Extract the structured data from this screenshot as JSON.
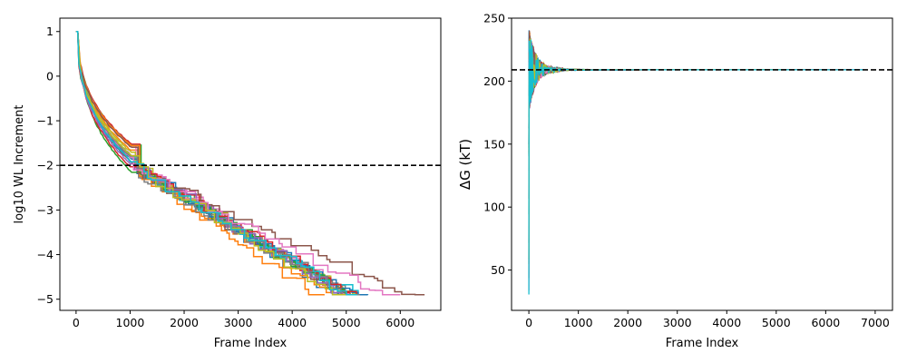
{
  "chart_data": [
    {
      "type": "line",
      "xlabel": "Frame Index",
      "ylabel": "log10 WL Increment",
      "xlim": [
        -300,
        6750
      ],
      "ylim": [
        -5.25,
        1.3
      ],
      "xticks": [
        0,
        1000,
        2000,
        3000,
        4000,
        5000,
        6000
      ],
      "yticks": [
        1,
        0,
        -1,
        -2,
        -3,
        -4,
        -5
      ],
      "ytick_labels": [
        "1",
        "0",
        "−1",
        "−2",
        "−3",
        "−4",
        "−5"
      ],
      "reference_line": {
        "y": -2,
        "style": "dashed",
        "color": "#000000"
      },
      "n_series": 20,
      "series_end_frames": [
        4900,
        5000,
        5050,
        5100,
        5150,
        5200,
        5250,
        5300,
        5300,
        5350,
        5400,
        4600,
        5150,
        5250,
        5100,
        6450,
        6000,
        5250,
        5050,
        5200
      ],
      "final_value": -4.9,
      "start_value": 1.0,
      "grid": false
    },
    {
      "type": "line",
      "xlabel": "Frame Index",
      "ylabel": "ΔG (kT)",
      "xlim": [
        -350,
        7350
      ],
      "ylim": [
        18,
        250
      ],
      "xticks": [
        0,
        1000,
        2000,
        3000,
        4000,
        5000,
        6000,
        7000
      ],
      "yticks": [
        50,
        100,
        150,
        200,
        250
      ],
      "reference_line": {
        "y": 209,
        "style": "dashed",
        "color": "#000000"
      },
      "converged_value": 209,
      "initial_range": [
        30,
        240
      ],
      "n_series": 20,
      "grid": false
    }
  ],
  "colors": [
    "#1f77b4",
    "#ff7f0e",
    "#2ca02c",
    "#d62728",
    "#9467bd",
    "#8c564b",
    "#e377c2",
    "#7f7f7f",
    "#bcbd22",
    "#17becf"
  ]
}
